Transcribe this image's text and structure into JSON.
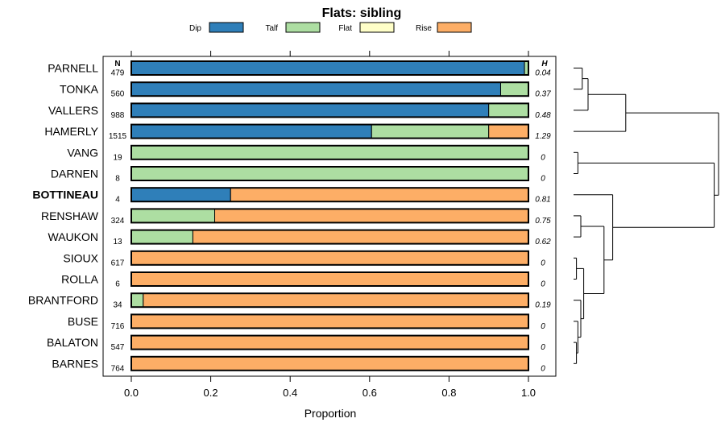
{
  "chart_data": {
    "type": "bar",
    "orientation": "horizontal",
    "stacked": true,
    "title": "Flats: sibling",
    "xlabel": "Proportion",
    "ylabel": "",
    "xlim": [
      0,
      1
    ],
    "xticks": [
      "0.0",
      "0.2",
      "0.4",
      "0.6",
      "0.8",
      "1.0"
    ],
    "n_header": "N",
    "h_header": "H",
    "legend": [
      {
        "name": "Dip",
        "color": "#2f7fb9"
      },
      {
        "name": "Talf",
        "color": "#addea2"
      },
      {
        "name": "Flat",
        "color": "#ffffc8"
      },
      {
        "name": "Rise",
        "color": "#fdae66"
      }
    ],
    "categories": [
      "PARNELL",
      "TONKA",
      "VALLERS",
      "HAMERLY",
      "VANG",
      "DARNEN",
      "BOTTINEAU",
      "RENSHAW",
      "WAUKON",
      "SIOUX",
      "ROLLA",
      "BRANTFORD",
      "BUSE",
      "BALATON",
      "BARNES"
    ],
    "highlight": [
      "BOTTINEAU"
    ],
    "n": [
      "479",
      "560",
      "988",
      "1515",
      "19",
      "8",
      "4",
      "324",
      "13",
      "617",
      "6",
      "34",
      "716",
      "547",
      "764"
    ],
    "h": [
      "0.04",
      "0.37",
      "0.48",
      "1.29",
      "0",
      "0",
      "0.81",
      "0.75",
      "0.62",
      "0",
      "0",
      "0.19",
      "0",
      "0",
      "0"
    ],
    "series": [
      {
        "name": "Dip",
        "values": [
          0.99,
          0.93,
          0.9,
          0.605,
          0,
          0,
          0.25,
          0,
          0,
          0,
          0,
          0,
          0,
          0,
          0
        ]
      },
      {
        "name": "Talf",
        "values": [
          0.01,
          0.07,
          0.1,
          0.295,
          1.0,
          1.0,
          0,
          0.21,
          0.155,
          0,
          0,
          0.03,
          0,
          0,
          0
        ]
      },
      {
        "name": "Flat",
        "values": [
          0,
          0,
          0,
          0,
          0,
          0,
          0,
          0,
          0,
          0,
          0,
          0,
          0,
          0,
          0
        ]
      },
      {
        "name": "Rise",
        "values": [
          0,
          0,
          0,
          0.1,
          0,
          0,
          0.75,
          0.79,
          0.845,
          1.0,
          1.0,
          0.97,
          1.0,
          1.0,
          1.0
        ]
      }
    ],
    "dendrogram": {
      "leaf_order": [
        "PARNELL",
        "TONKA",
        "VALLERS",
        "HAMERLY",
        "VANG",
        "DARNEN",
        "BOTTINEAU",
        "RENSHAW",
        "WAUKON",
        "SIOUX",
        "ROLLA",
        "BRANTFORD",
        "BUSE",
        "BALATON",
        "BARNES"
      ],
      "merges": [
        [
          0,
          1,
          0.06
        ],
        [
          -1,
          2,
          0.1
        ],
        [
          -2,
          3,
          0.36
        ],
        [
          4,
          5,
          0.03
        ],
        [
          7,
          8,
          0.05
        ],
        [
          9,
          10,
          0.02
        ],
        [
          13,
          14,
          0.02
        ],
        [
          12,
          -7,
          0.03
        ],
        [
          11,
          -8,
          0.05
        ],
        [
          -6,
          -9,
          0.07
        ],
        [
          -5,
          -10,
          0.21
        ],
        [
          6,
          -11,
          0.27
        ],
        [
          -4,
          -12,
          0.97
        ],
        [
          -3,
          -13,
          1.0
        ]
      ]
    }
  }
}
